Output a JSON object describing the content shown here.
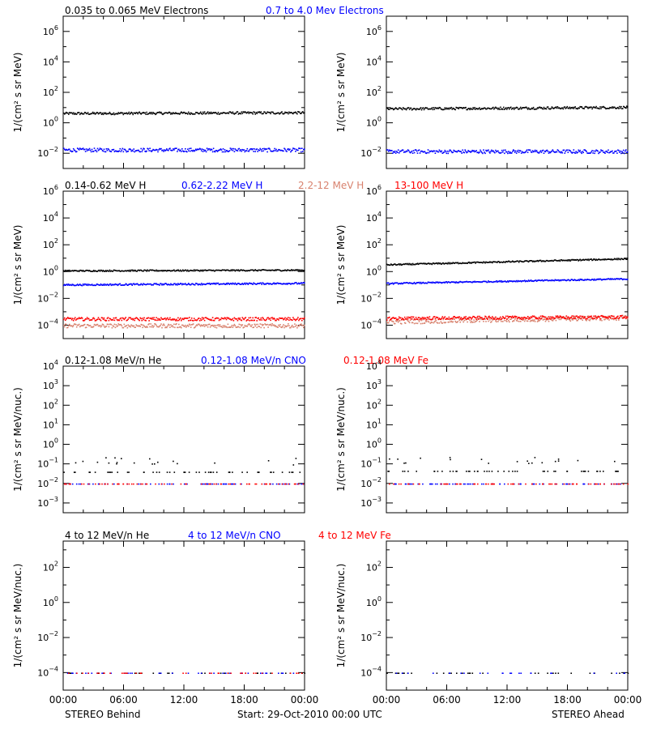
{
  "colors": {
    "black": "#000000",
    "blue": "#0000ff",
    "salmon": "#d8826e",
    "red": "#ff0000"
  },
  "footer": {
    "left": "STEREO Behind",
    "center": "Start: 29-Oct-2010 00:00 UTC",
    "right": "STEREO Ahead"
  },
  "chart_data": [
    {
      "type": "scatter",
      "row": 1,
      "spacecraft": "STEREO Behind",
      "ylabel": "1/(cm² s sr MeV)",
      "yscale": "log",
      "ylim_exp": [
        -3,
        7
      ],
      "ytick_exps": [
        -2,
        0,
        2,
        4,
        6
      ],
      "xlim_hours": [
        0,
        24
      ],
      "xticks": [
        "00:00",
        "06:00",
        "12:00",
        "18:00",
        "00:00"
      ],
      "series": [
        {
          "name": "0.035 to 0.065 MeV Electrons",
          "color": "#000000",
          "level_exp": 0.65,
          "spread": 0.08,
          "drift": 0.05
        },
        {
          "name": "0.7 to 4.0 Mev Electrons",
          "color": "#0000ff",
          "level_exp": -1.75,
          "spread": 0.12,
          "drift": 0
        }
      ]
    },
    {
      "type": "scatter",
      "row": 1,
      "spacecraft": "STEREO Ahead",
      "ylabel": "1/(cm² s sr MeV)",
      "yscale": "log",
      "ylim_exp": [
        -3,
        7
      ],
      "ytick_exps": [
        -2,
        0,
        2,
        4,
        6
      ],
      "xlim_hours": [
        0,
        24
      ],
      "xticks": [
        "00:00",
        "06:00",
        "12:00",
        "18:00",
        "00:00"
      ],
      "series": [
        {
          "name": "0.035 to 0.065 MeV Electrons",
          "color": "#000000",
          "level_exp": 0.95,
          "spread": 0.08,
          "drift": 0.1
        },
        {
          "name": "0.7 to 4.0 Mev Electrons",
          "color": "#0000ff",
          "level_exp": -1.85,
          "spread": 0.12,
          "drift": 0
        }
      ]
    },
    {
      "type": "scatter",
      "row": 2,
      "spacecraft": "STEREO Behind",
      "ylabel": "1/(cm² s sr MeV)",
      "yscale": "log",
      "ylim_exp": [
        -5,
        6
      ],
      "ytick_exps": [
        -4,
        -2,
        0,
        2,
        4,
        6
      ],
      "xlim_hours": [
        0,
        24
      ],
      "xticks": [
        "00:00",
        "06:00",
        "12:00",
        "18:00",
        "00:00"
      ],
      "series": [
        {
          "name": "0.14-0.62 MeV H",
          "color": "#000000",
          "level_exp": 0.1,
          "spread": 0.05,
          "drift": 0.05
        },
        {
          "name": "0.62-2.22 MeV H",
          "color": "#0000ff",
          "level_exp": -0.95,
          "spread": 0.06,
          "drift": 0.12
        },
        {
          "name": "2.2-12 MeV H",
          "color": "#d8826e",
          "level_exp": -4.0,
          "spread": 0.15,
          "drift": 0
        },
        {
          "name": "13-100 MeV H",
          "color": "#ff0000",
          "level_exp": -3.5,
          "spread": 0.12,
          "drift": 0
        }
      ]
    },
    {
      "type": "scatter",
      "row": 2,
      "spacecraft": "STEREO Ahead",
      "ylabel": "1/(cm² s sr MeV)",
      "yscale": "log",
      "ylim_exp": [
        -5,
        6
      ],
      "ytick_exps": [
        -4,
        -2,
        0,
        2,
        4,
        6
      ],
      "xlim_hours": [
        0,
        24
      ],
      "xticks": [
        "00:00",
        "06:00",
        "12:00",
        "18:00",
        "00:00"
      ],
      "series": [
        {
          "name": "0.14-0.62 MeV H",
          "color": "#000000",
          "level_exp": 0.55,
          "spread": 0.05,
          "drift": 0.45
        },
        {
          "name": "0.62-2.22 MeV H",
          "color": "#0000ff",
          "level_exp": -0.85,
          "spread": 0.05,
          "drift": 0.35
        },
        {
          "name": "2.2-12 MeV H",
          "color": "#d8826e",
          "level_exp": -3.7,
          "spread": 0.18,
          "drift": 0.3
        },
        {
          "name": "13-100 MeV H",
          "color": "#ff0000",
          "level_exp": -3.45,
          "spread": 0.12,
          "drift": 0.1
        }
      ]
    },
    {
      "type": "scatter",
      "row": 3,
      "spacecraft": "STEREO Behind",
      "ylabel": "1/(cm² s sr MeV/nuc.)",
      "yscale": "log",
      "ylim_exp": [
        -3.5,
        4
      ],
      "ytick_exps": [
        -3,
        -2,
        -1,
        0,
        1,
        2,
        3,
        4
      ],
      "xlim_hours": [
        0,
        24
      ],
      "xticks": [
        "00:00",
        "06:00",
        "12:00",
        "18:00",
        "00:00"
      ],
      "series": [
        {
          "name": "0.12-1.08 MeV/n He",
          "color": "#000000",
          "level_exp": -1.4,
          "spread": 0,
          "drift": 0,
          "sparse": true
        },
        {
          "name": "0.12-1.08 MeV/n CNO",
          "color": "#0000ff",
          "level_exp": -2.0,
          "spread": 0,
          "drift": 0,
          "sparse": true
        },
        {
          "name": "0.12-1.08 MeV Fe",
          "color": "#ff0000",
          "level_exp": -2.0,
          "spread": 0,
          "drift": 0,
          "sparse": true
        }
      ]
    },
    {
      "type": "scatter",
      "row": 3,
      "spacecraft": "STEREO Ahead",
      "ylabel": "1/(cm² s sr MeV/nuc.)",
      "yscale": "log",
      "ylim_exp": [
        -3.5,
        4
      ],
      "ytick_exps": [
        -3,
        -2,
        -1,
        0,
        1,
        2,
        3,
        4
      ],
      "xlim_hours": [
        0,
        24
      ],
      "xticks": [
        "00:00",
        "06:00",
        "12:00",
        "18:00",
        "00:00"
      ],
      "series": [
        {
          "name": "0.12-1.08 MeV/n He",
          "color": "#000000",
          "level_exp": -1.35,
          "spread": 0,
          "drift": 0,
          "sparse": true
        },
        {
          "name": "0.12-1.08 MeV/n CNO",
          "color": "#0000ff",
          "level_exp": -2.0,
          "spread": 0,
          "drift": 0,
          "sparse": true
        },
        {
          "name": "0.12-1.08 MeV Fe",
          "color": "#ff0000",
          "level_exp": -2.0,
          "spread": 0,
          "drift": 0,
          "sparse": true
        }
      ]
    },
    {
      "type": "scatter",
      "row": 4,
      "spacecraft": "STEREO Behind",
      "ylabel": "1/(cm² s sr MeV/nuc.)",
      "yscale": "log",
      "ylim_exp": [
        -5,
        3.5
      ],
      "ytick_exps": [
        -4,
        -2,
        0,
        2
      ],
      "xlim_hours": [
        0,
        24
      ],
      "xticks": [
        "00:00",
        "06:00",
        "12:00",
        "18:00",
        "00:00"
      ],
      "series": [
        {
          "name": "4 to 12 MeV/n He",
          "color": "#000000",
          "level_exp": -4.0,
          "spread": 0,
          "drift": 0,
          "sparse": true
        },
        {
          "name": "4 to 12 MeV/n CNO",
          "color": "#0000ff",
          "level_exp": -4.0,
          "spread": 0,
          "drift": 0,
          "sparse": true
        },
        {
          "name": "4 to 12 MeV Fe",
          "color": "#ff0000",
          "level_exp": -4.0,
          "spread": 0,
          "drift": 0,
          "sparse": true
        }
      ]
    },
    {
      "type": "scatter",
      "row": 4,
      "spacecraft": "STEREO Ahead",
      "ylabel": "1/(cm² s sr MeV/nuc.)",
      "yscale": "log",
      "ylim_exp": [
        -5,
        3.5
      ],
      "ytick_exps": [
        -4,
        -2,
        0,
        2
      ],
      "xlim_hours": [
        0,
        24
      ],
      "xticks": [
        "00:00",
        "06:00",
        "12:00",
        "18:00",
        "00:00"
      ],
      "series": [
        {
          "name": "4 to 12 MeV/n He",
          "color": "#000000",
          "level_exp": -4.0,
          "spread": 0,
          "drift": 0,
          "sparse": true
        },
        {
          "name": "4 to 12 MeV/n CNO",
          "color": "#0000ff",
          "level_exp": -4.0,
          "spread": 0,
          "drift": 0,
          "sparse": true
        }
      ]
    }
  ]
}
